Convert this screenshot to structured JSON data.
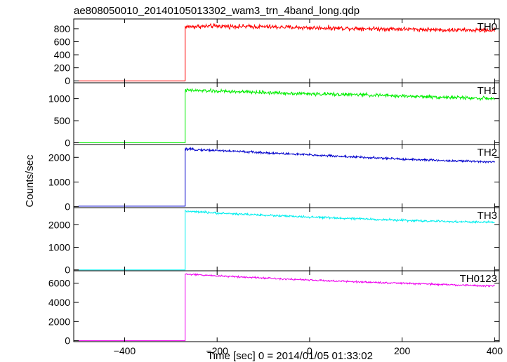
{
  "chart_data": {
    "type": "line",
    "title": "ae808050010_20140105013302_wam3_trn_4band_long.qdp",
    "xlabel": "Time [sec] 0 = 2014/01/05 01:33:02",
    "ylabel": "Counts/sec",
    "xlim": [
      -510,
      410
    ],
    "x_ticks": [
      -400,
      -200,
      0,
      200,
      400
    ],
    "x_tick_labels": [
      "−400",
      "−200",
      "0",
      "200",
      "400"
    ],
    "step_time": -269,
    "x_start": -500,
    "x_end": 400,
    "panels": [
      {
        "name": "TH0",
        "color": "#ff0000",
        "ylim": [
          -30,
          950
        ],
        "y_ticks": [
          0,
          200,
          400,
          600,
          800
        ],
        "y_tick_labels": [
          "0",
          "200",
          "400",
          "600",
          "800"
        ],
        "pre_level": 0,
        "series": [
          [
            -269,
            830
          ],
          [
            -200,
            840
          ],
          [
            -100,
            830
          ],
          [
            0,
            815
          ],
          [
            100,
            805
          ],
          [
            200,
            795
          ],
          [
            300,
            780
          ],
          [
            400,
            775
          ]
        ],
        "noise": 25
      },
      {
        "name": "TH1",
        "color": "#00ee00",
        "ylim": [
          -40,
          1360
        ],
        "y_ticks": [
          0,
          500,
          1000
        ],
        "y_tick_labels": [
          "0",
          "500",
          "1000"
        ],
        "pre_level": 0,
        "series": [
          [
            -269,
            1190
          ],
          [
            -200,
            1170
          ],
          [
            -100,
            1140
          ],
          [
            0,
            1110
          ],
          [
            100,
            1090
          ],
          [
            200,
            1060
          ],
          [
            300,
            1030
          ],
          [
            400,
            1000
          ]
        ],
        "noise": 30
      },
      {
        "name": "TH2",
        "color": "#0000cc",
        "ylim": [
          -40,
          2520
        ],
        "y_ticks": [
          0,
          1000,
          2000
        ],
        "y_tick_labels": [
          "0",
          "1000",
          "2000"
        ],
        "pre_level": 20,
        "series": [
          [
            -269,
            2330
          ],
          [
            -200,
            2280
          ],
          [
            -100,
            2190
          ],
          [
            0,
            2100
          ],
          [
            100,
            2010
          ],
          [
            200,
            1930
          ],
          [
            300,
            1860
          ],
          [
            400,
            1820
          ]
        ],
        "noise": 35
      },
      {
        "name": "TH3",
        "color": "#00eeee",
        "ylim": [
          -40,
          2760
        ],
        "y_ticks": [
          0,
          1000,
          2000
        ],
        "y_tick_labels": [
          "0",
          "1000",
          "2000"
        ],
        "pre_level": 0,
        "series": [
          [
            -269,
            2600
          ],
          [
            -200,
            2520
          ],
          [
            -100,
            2430
          ],
          [
            0,
            2340
          ],
          [
            100,
            2270
          ],
          [
            200,
            2200
          ],
          [
            300,
            2140
          ],
          [
            400,
            2110
          ]
        ],
        "noise": 35
      },
      {
        "name": "TH0123",
        "color": "#ee00ee",
        "ylim": [
          -100,
          7300
        ],
        "y_ticks": [
          0,
          2000,
          4000,
          6000
        ],
        "y_tick_labels": [
          "0",
          "2000",
          "4000",
          "6000"
        ],
        "pre_level": 0,
        "series": [
          [
            -269,
            6950
          ],
          [
            -200,
            6780
          ],
          [
            -100,
            6560
          ],
          [
            0,
            6330
          ],
          [
            100,
            6150
          ],
          [
            200,
            6000
          ],
          [
            300,
            5850
          ],
          [
            400,
            5700
          ]
        ],
        "noise": 70
      }
    ]
  }
}
